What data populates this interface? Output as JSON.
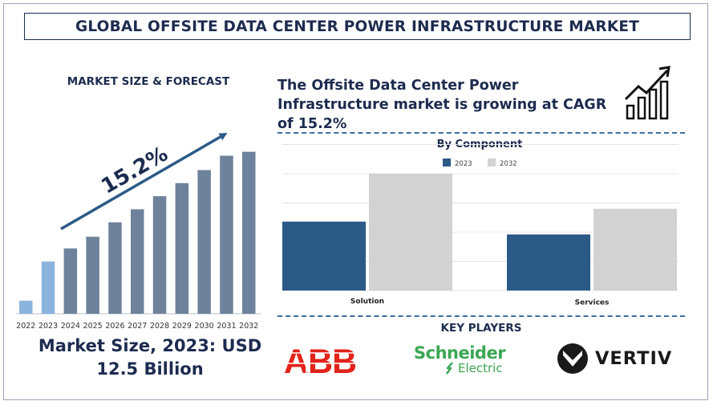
{
  "title": "GLOBAL OFFSITE DATA CENTER POWER INFRASTRUCTURE MARKET",
  "left": {
    "heading": "MARKET SIZE & FORECAST",
    "cagr_label": "15.2%",
    "market_size_line1": "Market Size, 2023: USD",
    "market_size_line2": "12.5 Billion"
  },
  "headline": {
    "line1": "The Offsite Data Center Power",
    "line2": "Infrastructure market is growing at CAGR",
    "line3": "of 15.2%",
    "icon": "bar-growth-arrow-icon"
  },
  "key_players": {
    "title": "KEY PLAYERS",
    "logos": [
      {
        "name": "ABB",
        "color": "#e2231a"
      },
      {
        "name": "Schneider",
        "sub": "Electric",
        "color": "#3aa652"
      },
      {
        "name": "VERTIV",
        "color": "#1a1a1a"
      }
    ]
  },
  "chart_data": [
    {
      "type": "bar",
      "categories": [
        "2022",
        "2023",
        "2024",
        "2025",
        "2026",
        "2027",
        "2028",
        "2029",
        "2030",
        "2031",
        "2032"
      ],
      "values": [
        1.0,
        4.0,
        5.0,
        5.9,
        7.0,
        8.0,
        9.0,
        10.0,
        11.0,
        12.1,
        12.4
      ],
      "colors": [
        "#8ab4de",
        "#8ab4de",
        "#6e829c",
        "#6e829c",
        "#6e829c",
        "#6e829c",
        "#6e829c",
        "#6e829c",
        "#6e829c",
        "#6e829c",
        "#6e829c"
      ],
      "ylim": [
        0,
        12.5
      ],
      "grid": false,
      "annotation": "15.2%"
    },
    {
      "type": "bar",
      "title": "By Component",
      "categories": [
        "Solution",
        "Services"
      ],
      "series": [
        {
          "name": "2023",
          "values": [
            59,
            48
          ],
          "color": "#2b5a87"
        },
        {
          "name": "2032",
          "values": [
            100,
            70
          ],
          "color": "#d2d2d2"
        }
      ],
      "ylim": [
        0,
        100
      ],
      "grid": true,
      "legend": "top-center"
    }
  ]
}
